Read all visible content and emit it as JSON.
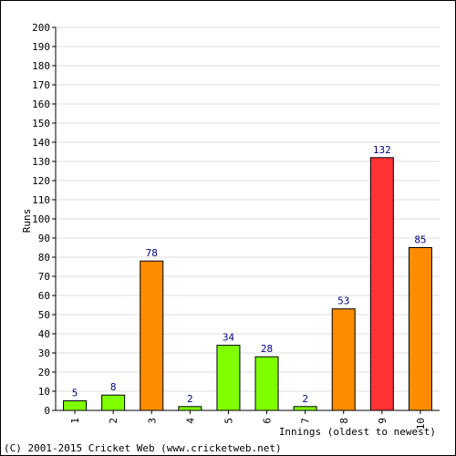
{
  "chart_data": {
    "type": "bar",
    "categories": [
      "1",
      "2",
      "3",
      "4",
      "5",
      "6",
      "7",
      "8",
      "9",
      "10"
    ],
    "values": [
      5,
      8,
      78,
      2,
      34,
      28,
      2,
      53,
      132,
      85
    ],
    "bar_colors": [
      "#7fff00",
      "#7fff00",
      "#ff8c00",
      "#7fff00",
      "#7fff00",
      "#7fff00",
      "#7fff00",
      "#ff8c00",
      "#ff3333",
      "#ff8c00"
    ],
    "xlabel": "Innings (oldest to newest)",
    "ylabel": "Runs",
    "ylim": [
      0,
      200
    ],
    "ytick_step": 10,
    "grid": true,
    "data_label_color": "#000080"
  },
  "footer": {
    "copyright": "(C) 2001-2015 Cricket Web (www.cricketweb.net)"
  }
}
